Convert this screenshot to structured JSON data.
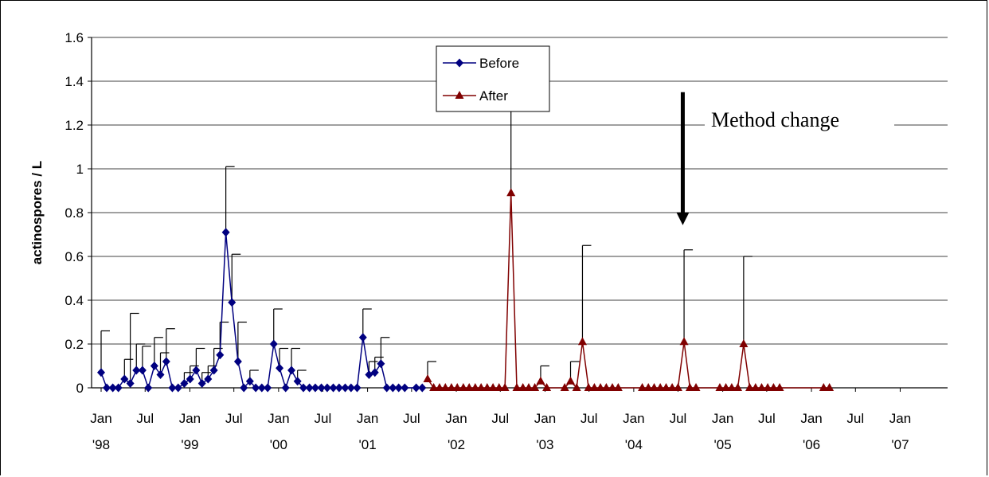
{
  "chart_data": {
    "type": "line",
    "title": "",
    "xlabel": "",
    "ylabel": "actinospores / L",
    "ylim": [
      0,
      1.6
    ],
    "yticks": [
      "0",
      "0.2",
      "0.4",
      "0.6",
      "0.8",
      "1",
      "1.2",
      "1.4",
      "1.6"
    ],
    "x_tick_labels": [
      {
        "month": "Jan",
        "year": "'98",
        "date": "1998-01"
      },
      {
        "month": "Jul",
        "year": "",
        "date": "1998-07"
      },
      {
        "month": "Jan",
        "year": "'99",
        "date": "1999-01"
      },
      {
        "month": "Jul",
        "year": "",
        "date": "1999-07"
      },
      {
        "month": "Jan",
        "year": "'00",
        "date": "2000-01"
      },
      {
        "month": "Jul",
        "year": "",
        "date": "2000-07"
      },
      {
        "month": "Jan",
        "year": "'01",
        "date": "2001-01"
      },
      {
        "month": "Jul",
        "year": "",
        "date": "2001-07"
      },
      {
        "month": "Jan",
        "year": "'02",
        "date": "2002-01"
      },
      {
        "month": "Jul",
        "year": "",
        "date": "2002-07"
      },
      {
        "month": "Jan",
        "year": "'03",
        "date": "2003-01"
      },
      {
        "month": "Jul",
        "year": "",
        "date": "2003-07"
      },
      {
        "month": "Jan",
        "year": "'04",
        "date": "2004-01"
      },
      {
        "month": "Jul",
        "year": "",
        "date": "2004-07"
      },
      {
        "month": "Jan",
        "year": "'05",
        "date": "2005-01"
      },
      {
        "month": "Jul",
        "year": "",
        "date": "2005-07"
      },
      {
        "month": "Jan",
        "year": "'06",
        "date": "2006-01"
      },
      {
        "month": "Jul",
        "year": "",
        "date": "2006-07"
      },
      {
        "month": "Jan",
        "year": "'07",
        "date": "2007-01"
      }
    ],
    "grid": "horizontal",
    "legend": "top-center",
    "annotation": {
      "text": "Method change",
      "arrow_date": "2004-07",
      "arrow_from": 1.35,
      "arrow_to": 0.75
    },
    "series": [
      {
        "name": "Before",
        "color": "#000080",
        "marker": "diamond",
        "points": [
          {
            "date": "1998-01-01",
            "y": 0.07,
            "err": 0.26
          },
          {
            "date": "1998-01-24",
            "y": 0.0
          },
          {
            "date": "1998-02-18",
            "y": 0.0
          },
          {
            "date": "1998-03-13",
            "y": 0.0
          },
          {
            "date": "1998-04-07",
            "y": 0.04,
            "err": 0.13
          },
          {
            "date": "1998-05-01",
            "y": 0.02,
            "err": 0.34
          },
          {
            "date": "1998-05-26",
            "y": 0.08,
            "err": 0.2
          },
          {
            "date": "1998-06-20",
            "y": 0.08,
            "err": 0.19
          },
          {
            "date": "1998-07-14",
            "y": 0.0
          },
          {
            "date": "1998-08-08",
            "y": 0.1,
            "err": 0.23
          },
          {
            "date": "1998-09-02",
            "y": 0.06,
            "err": 0.16
          },
          {
            "date": "1998-09-26",
            "y": 0.12,
            "err": 0.27
          },
          {
            "date": "1998-10-21",
            "y": 0.0
          },
          {
            "date": "1998-11-14",
            "y": 0.0
          },
          {
            "date": "1998-12-09",
            "y": 0.02,
            "err": 0.07
          },
          {
            "date": "1999-01-02",
            "y": 0.04,
            "err": 0.1
          },
          {
            "date": "1999-01-27",
            "y": 0.08,
            "err": 0.18
          },
          {
            "date": "1999-02-20",
            "y": 0.02,
            "err": 0.07
          },
          {
            "date": "1999-03-17",
            "y": 0.04,
            "err": 0.1
          },
          {
            "date": "1999-04-10",
            "y": 0.08,
            "err": 0.18
          },
          {
            "date": "1999-05-05",
            "y": 0.15,
            "err": 0.3
          },
          {
            "date": "1999-05-29",
            "y": 0.71,
            "err": 1.01
          },
          {
            "date": "1999-06-23",
            "y": 0.39,
            "err": 0.61
          },
          {
            "date": "1999-07-18",
            "y": 0.12,
            "err": 0.3
          },
          {
            "date": "1999-08-11",
            "y": 0.0
          },
          {
            "date": "1999-09-05",
            "y": 0.03,
            "err": 0.08
          },
          {
            "date": "1999-09-29",
            "y": 0.0
          },
          {
            "date": "1999-10-24",
            "y": 0.0
          },
          {
            "date": "1999-11-17",
            "y": 0.0
          },
          {
            "date": "1999-12-12",
            "y": 0.2,
            "err": 0.36
          },
          {
            "date": "2000-01-05",
            "y": 0.09,
            "err": 0.18
          },
          {
            "date": "2000-01-30",
            "y": 0.0
          },
          {
            "date": "2000-02-23",
            "y": 0.08,
            "err": 0.18
          },
          {
            "date": "2000-03-19",
            "y": 0.03,
            "err": 0.08
          },
          {
            "date": "2000-04-12",
            "y": 0.0
          },
          {
            "date": "2000-05-07",
            "y": 0.0
          },
          {
            "date": "2000-05-31",
            "y": 0.0
          },
          {
            "date": "2000-06-25",
            "y": 0.0
          },
          {
            "date": "2000-07-19",
            "y": 0.0
          },
          {
            "date": "2000-08-13",
            "y": 0.0
          },
          {
            "date": "2000-09-06",
            "y": 0.0
          },
          {
            "date": "2000-10-01",
            "y": 0.0
          },
          {
            "date": "2000-10-25",
            "y": 0.0
          },
          {
            "date": "2000-11-19",
            "y": 0.0
          },
          {
            "date": "2000-12-13",
            "y": 0.23,
            "err": 0.36
          },
          {
            "date": "2001-01-07",
            "y": 0.06,
            "err": 0.12
          },
          {
            "date": "2001-01-31",
            "y": 0.07,
            "err": 0.14
          },
          {
            "date": "2001-02-25",
            "y": 0.11,
            "err": 0.23
          },
          {
            "date": "2001-03-21",
            "y": 0.0
          },
          {
            "date": "2001-04-15",
            "y": 0.0
          },
          {
            "date": "2001-05-09",
            "y": 0.0
          },
          {
            "date": "2001-06-03",
            "y": 0.0
          },
          {
            "date": "2001-07-20",
            "y": 0.0
          },
          {
            "date": "2001-08-14",
            "y": 0.0
          }
        ]
      },
      {
        "name": "After",
        "color": "#800000",
        "marker": "triangle",
        "points": [
          {
            "date": "2001-09-05",
            "y": 0.04,
            "err": 0.12
          },
          {
            "date": "2001-09-30",
            "y": 0.0
          },
          {
            "date": "2001-10-24",
            "y": 0.0
          },
          {
            "date": "2001-11-17",
            "y": 0.0
          },
          {
            "date": "2001-12-12",
            "y": 0.0
          },
          {
            "date": "2002-01-05",
            "y": 0.0
          },
          {
            "date": "2002-01-30",
            "y": 0.0
          },
          {
            "date": "2002-02-23",
            "y": 0.0
          },
          {
            "date": "2002-03-20",
            "y": 0.0
          },
          {
            "date": "2002-04-13",
            "y": 0.0
          },
          {
            "date": "2002-05-08",
            "y": 0.0
          },
          {
            "date": "2002-06-01",
            "y": 0.0
          },
          {
            "date": "2002-06-26",
            "y": 0.0
          },
          {
            "date": "2002-07-20",
            "y": 0.0
          },
          {
            "date": "2002-08-14",
            "y": 0.89,
            "err": 1.34
          },
          {
            "date": "2002-09-07",
            "y": 0.0
          },
          {
            "date": "2002-10-02",
            "y": 0.0
          },
          {
            "date": "2002-10-26",
            "y": 0.0
          },
          {
            "date": "2002-11-20",
            "y": 0.0
          },
          {
            "date": "2002-12-14",
            "y": 0.03,
            "err": 0.1
          },
          {
            "date": "2003-01-08",
            "y": 0.0
          },
          {
            "date": "2003-03-23",
            "y": 0.0
          },
          {
            "date": "2003-04-16",
            "y": 0.03,
            "err": 0.12
          },
          {
            "date": "2003-05-11",
            "y": 0.0
          },
          {
            "date": "2003-06-04",
            "y": 0.21,
            "err": 0.65
          },
          {
            "date": "2003-06-29",
            "y": 0.0
          },
          {
            "date": "2003-07-23",
            "y": 0.0
          },
          {
            "date": "2003-08-17",
            "y": 0.0
          },
          {
            "date": "2003-09-10",
            "y": 0.0
          },
          {
            "date": "2003-10-05",
            "y": 0.0
          },
          {
            "date": "2003-10-29",
            "y": 0.0
          },
          {
            "date": "2004-02-05",
            "y": 0.0
          },
          {
            "date": "2004-03-01",
            "y": 0.0
          },
          {
            "date": "2004-03-25",
            "y": 0.0
          },
          {
            "date": "2004-04-19",
            "y": 0.0
          },
          {
            "date": "2004-05-13",
            "y": 0.0
          },
          {
            "date": "2004-06-07",
            "y": 0.0
          },
          {
            "date": "2004-07-01",
            "y": 0.0
          },
          {
            "date": "2004-07-26",
            "y": 0.21,
            "err": 0.63
          },
          {
            "date": "2004-08-19",
            "y": 0.0
          },
          {
            "date": "2004-09-13",
            "y": 0.0
          },
          {
            "date": "2004-12-20",
            "y": 0.0
          },
          {
            "date": "2005-01-14",
            "y": 0.0
          },
          {
            "date": "2005-02-07",
            "y": 0.0
          },
          {
            "date": "2005-03-04",
            "y": 0.0
          },
          {
            "date": "2005-03-28",
            "y": 0.2,
            "err": 0.6
          },
          {
            "date": "2005-04-22",
            "y": 0.0
          },
          {
            "date": "2005-05-16",
            "y": 0.0
          },
          {
            "date": "2005-06-10",
            "y": 0.0
          },
          {
            "date": "2005-07-05",
            "y": 0.0
          },
          {
            "date": "2005-07-29",
            "y": 0.0
          },
          {
            "date": "2005-08-23",
            "y": 0.0
          },
          {
            "date": "2006-02-20",
            "y": 0.0
          },
          {
            "date": "2006-03-16",
            "y": 0.0
          }
        ]
      }
    ]
  }
}
